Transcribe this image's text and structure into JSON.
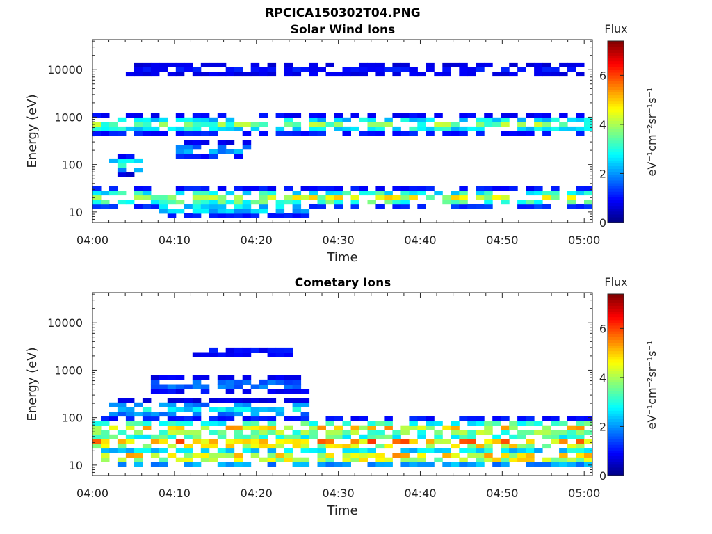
{
  "figure": {
    "title": "RPCICA150302T04.PNG"
  },
  "colorbar": {
    "label": "Flux",
    "unit_label": "eV⁻¹cm⁻²sr⁻¹s⁻¹",
    "ticks": [
      "0",
      "2",
      "4",
      "6"
    ],
    "range": [
      0,
      7.4
    ],
    "colormap": "jet"
  },
  "chart_data": [
    {
      "type": "heatmap",
      "title": "Solar Wind Ions",
      "xlabel": "Time",
      "ylabel": "Energy (eV)",
      "x_ticks": [
        "04:00",
        "04:10",
        "04:20",
        "04:30",
        "04:40",
        "04:50",
        "05:00"
      ],
      "x_range_minutes": [
        0,
        61
      ],
      "y_ticks": [
        "10",
        "100",
        "1000",
        "10000"
      ],
      "y_scale": "log",
      "y_range": [
        6,
        43000
      ],
      "bands": [
        {
          "energy": 20,
          "time_range": [
            0,
            61
          ],
          "level": 4.2
        },
        {
          "energy": 12,
          "time_range": [
            8,
            26
          ],
          "level": 2.6
        },
        {
          "energy": 700,
          "time_range": [
            0,
            61
          ],
          "level": 3.6
        },
        {
          "energy": 200,
          "time_range": [
            10,
            19
          ],
          "level": 2.0
        },
        {
          "energy": 100,
          "time_range": [
            2,
            6
          ],
          "level": 3.0
        },
        {
          "energy": 10000,
          "time_range": [
            4,
            61
          ],
          "level": 1.0
        }
      ]
    },
    {
      "type": "heatmap",
      "title": "Cometary Ions",
      "xlabel": "Time",
      "ylabel": "Energy (eV)",
      "x_ticks": [
        "04:00",
        "04:10",
        "04:20",
        "04:30",
        "04:40",
        "04:50",
        "05:00"
      ],
      "x_range_minutes": [
        0,
        61
      ],
      "y_ticks": [
        "10",
        "100",
        "1000",
        "10000"
      ],
      "y_scale": "log",
      "y_range": [
        6,
        43000
      ],
      "bands": [
        {
          "energy": 30,
          "time_range": [
            0,
            61
          ],
          "level": 5.2
        },
        {
          "energy": 60,
          "time_range": [
            0,
            61
          ],
          "level": 4.6
        },
        {
          "energy": 15,
          "time_range": [
            1,
            61
          ],
          "level": 4.8
        },
        {
          "energy": 150,
          "time_range": [
            2,
            26
          ],
          "level": 2.6
        },
        {
          "energy": 500,
          "time_range": [
            7,
            26
          ],
          "level": 1.8
        },
        {
          "energy": 2500,
          "time_range": [
            12,
            24
          ],
          "level": 1.0
        }
      ]
    }
  ]
}
